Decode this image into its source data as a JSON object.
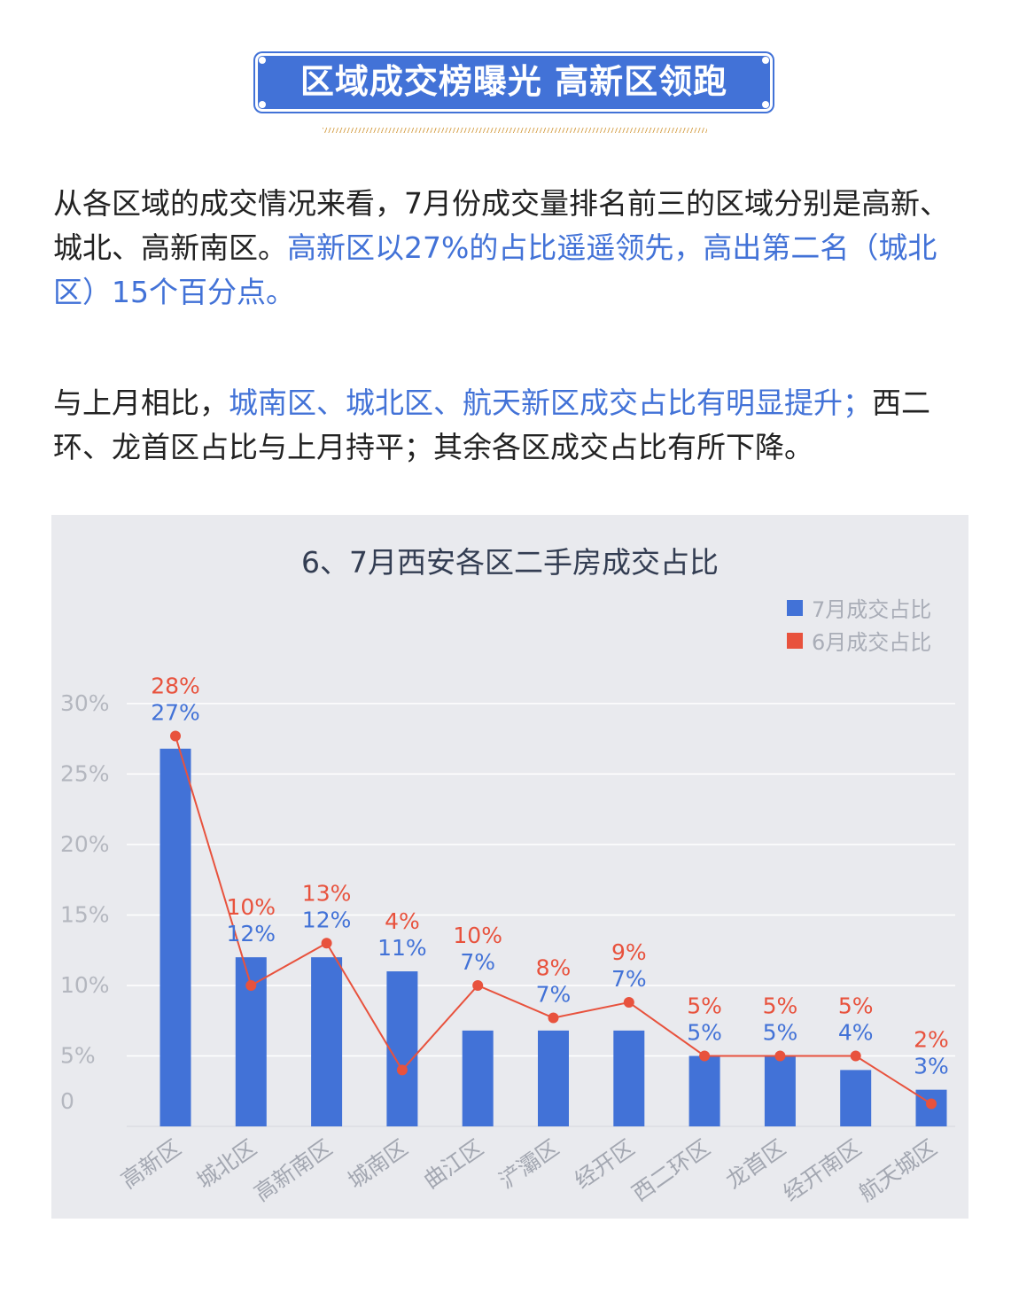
{
  "header": {
    "title": "区域成交榜曝光 高新区领跑"
  },
  "paragraphs": [
    {
      "segments": [
        {
          "text": "从各区域的成交情况来看，7月份成交量排名前三的区域分别是高新、城北、高新南区。",
          "highlight": false
        },
        {
          "text": "高新区以27%的占比遥遥领先，高出第二名（城北区）15个百分点。",
          "highlight": true
        }
      ]
    },
    {
      "segments": [
        {
          "text": "与上月相比，",
          "highlight": false
        },
        {
          "text": "城南区、城北区、航天新区成交占比有明显提升；",
          "highlight": true
        },
        {
          "text": "西二环、龙首区占比与上月持平；其余各区成交占比有所下降。",
          "highlight": false
        }
      ]
    }
  ],
  "colors": {
    "accent": "#4272d7",
    "bar": "#4272d7",
    "line": "#e8523d",
    "panel": "#e9eaee"
  },
  "chart_data": {
    "type": "bar",
    "title": "6、7月西安各区二手房成交占比",
    "categories": [
      "高新区",
      "城北区",
      "高新南区",
      "城南区",
      "曲江区",
      "浐灞区",
      "经开区",
      "西二环区",
      "龙首区",
      "经开南区",
      "航天城区"
    ],
    "series": [
      {
        "name": "7月成交占比",
        "type": "bar",
        "color": "#4272d7",
        "values": [
          26.8,
          12,
          12,
          11,
          6.8,
          6.8,
          6.8,
          5,
          5,
          4,
          2.6
        ],
        "labels": [
          "27%",
          "12%",
          "12%",
          "11%",
          "7%",
          "7%",
          "7%",
          "5%",
          "5%",
          "4%",
          "3%"
        ]
      },
      {
        "name": "6月成交占比",
        "type": "line",
        "color": "#e8523d",
        "values": [
          27.7,
          10,
          13,
          4,
          10,
          7.7,
          8.8,
          5,
          5,
          5,
          1.6
        ],
        "labels": [
          "28%",
          "10%",
          "13%",
          "4%",
          "10%",
          "8%",
          "9%",
          "5%",
          "5%",
          "5%",
          "2%"
        ]
      }
    ],
    "ylim": [
      0,
      31
    ],
    "yticks": [
      0,
      5,
      10,
      15,
      20,
      25,
      30
    ],
    "ytick_labels": [
      "0",
      "5%",
      "10%",
      "15%",
      "20%",
      "25%",
      "30%"
    ],
    "grid": true,
    "legend": "top-right"
  }
}
